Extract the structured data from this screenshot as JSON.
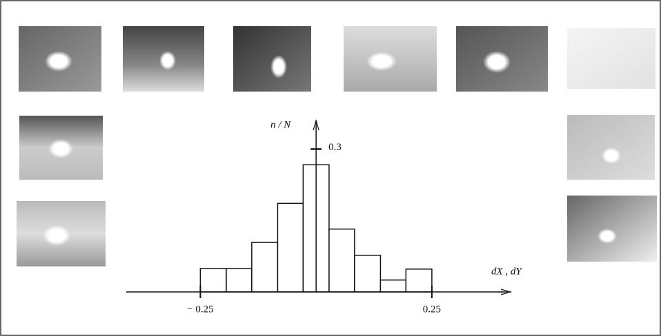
{
  "chart_data": {
    "type": "histogram",
    "x_label": "dX , dY",
    "y_label": "n / N",
    "bins": [
      -0.25,
      -0.194,
      -0.139,
      -0.083,
      -0.028,
      0.028,
      0.083,
      0.139,
      0.194,
      0.25
    ],
    "values": [
      0.049,
      0.049,
      0.104,
      0.186,
      0.267,
      0.132,
      0.077,
      0.025,
      0.048
    ],
    "color": "#ffffff",
    "xlim": [
      -0.41,
      0.42
    ],
    "ylim": [
      0,
      0.36
    ],
    "xticks": [
      {
        "value": -0.25,
        "label": "− 0.25"
      },
      0.25
    ],
    "yticks": [
      0.3
    ]
  }
}
